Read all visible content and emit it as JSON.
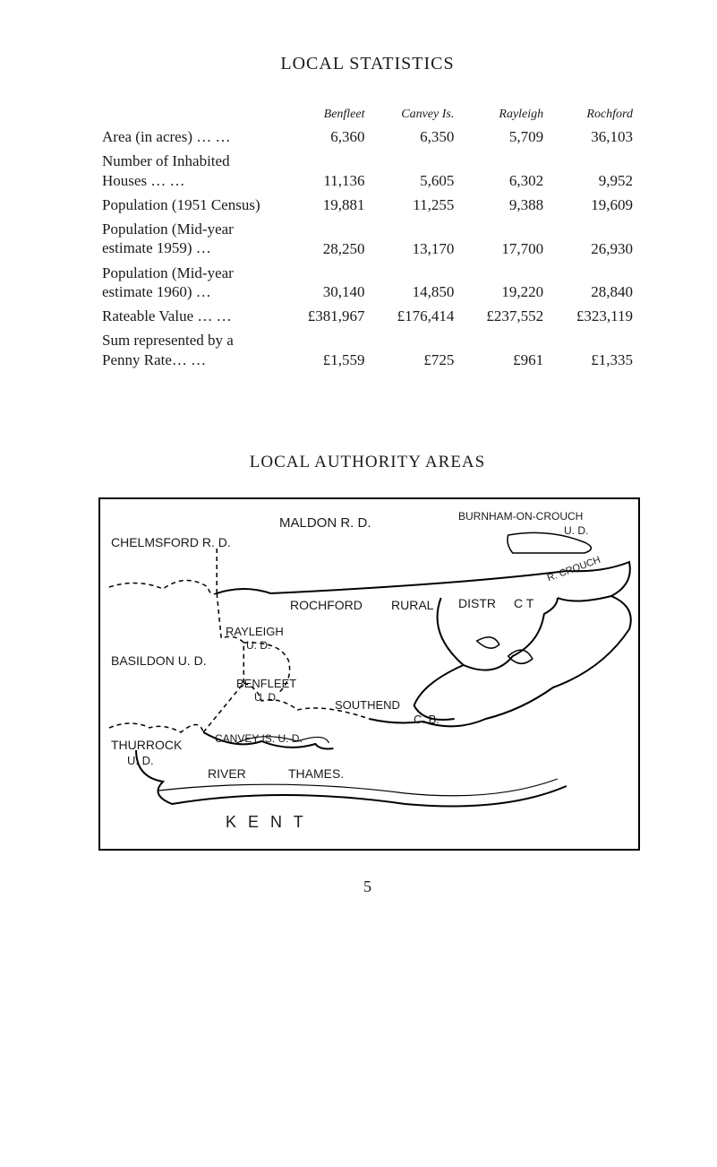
{
  "title": "LOCAL STATISTICS",
  "columns": {
    "c1": "Benfleet",
    "c2": "Canvey Is.",
    "c3": "Rayleigh",
    "c4": "Rochford"
  },
  "rows": [
    {
      "label": "Area (in acres)   …     …",
      "v1": "6,360",
      "v2": "6,350",
      "v3": "5,709",
      "v4": "36,103"
    },
    {
      "label": "Number of Inhabited\n  Houses      …     …",
      "v1": "11,136",
      "v2": "5,605",
      "v3": "6,302",
      "v4": "9,952"
    },
    {
      "label": "Population (1951 Census)",
      "v1": "19,881",
      "v2": "11,255",
      "v3": "9,388",
      "v4": "19,609"
    },
    {
      "label": "Population   (Mid-year\n  estimate 1959)    …",
      "v1": "28,250",
      "v2": "13,170",
      "v3": "17,700",
      "v4": "26,930"
    },
    {
      "label": "Population   (Mid-year\n  estimate 1960)    …",
      "v1": "30,140",
      "v2": "14,850",
      "v3": "19,220",
      "v4": "28,840"
    },
    {
      "label": "Rateable Value …    …",
      "v1": "£381,967",
      "v2": "£176,414",
      "v3": "£237,552",
      "v4": "£323,119"
    },
    {
      "label": "Sum represented by a\n  Penny Rate…    …",
      "v1": "£1,559",
      "v2": "£725",
      "v3": "£961",
      "v4": "£1,335"
    }
  ],
  "section2_title": "LOCAL AUTHORITY AREAS",
  "map_labels": {
    "chelmsford": "CHELMSFORD  R. D.",
    "maldon": "MALDON  R. D.",
    "burnham": "BURNHAM-ON-CROUCH",
    "burnham_ud": "U. D.",
    "r_crouch": "R. CROUCH",
    "rochford": "ROCHFORD",
    "rural": "RURAL",
    "distr": "DISTR",
    "ct": "C T",
    "rayleigh": "RAYLEIGH",
    "rayleigh_ud": "U. D.",
    "basildon": "BASILDON U. D.",
    "benfleet": "BENFLEET",
    "benfleet_ud": "U. D.",
    "southend": "SOUTHEND",
    "cb": "C. B.",
    "thurrock": "THURROCK",
    "thurrock_ud": "U. D.",
    "canvey": "CANVEY IS. U. D.",
    "river": "RIVER",
    "thames": "THAMES.",
    "kent": "K E N T"
  },
  "page_number": "5",
  "colors": {
    "text": "#1a1a1a",
    "background": "#ffffff",
    "border": "#000000"
  },
  "typography": {
    "body_font": "Times New Roman",
    "body_size_pt": 12,
    "title_size_pt": 14,
    "map_font": "handwritten/engraved caps"
  }
}
